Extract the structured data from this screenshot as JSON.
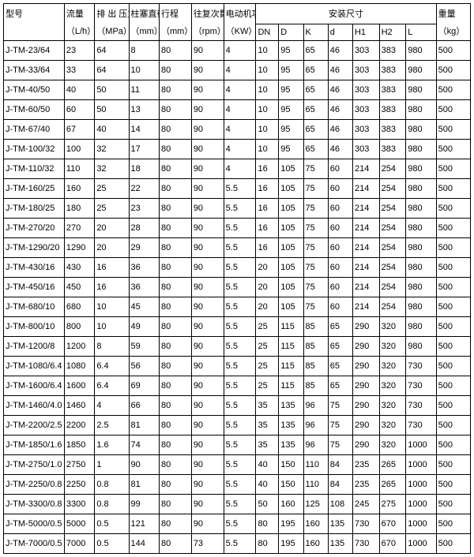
{
  "headers": {
    "model": "型号",
    "flow": {
      "label": "流量",
      "unit": "（L/h）"
    },
    "pressure": {
      "label": "排 出 压力",
      "unit": "（MPa）"
    },
    "plunger": {
      "label": "柱塞直径",
      "unit": "（mm）"
    },
    "stroke": {
      "label": "行程",
      "unit": "（mm）"
    },
    "recip": {
      "label": "往复次数",
      "unit": "（rpm）"
    },
    "motor": {
      "label": "电动机功率",
      "unit": "（KW）"
    },
    "install": "安装尺寸",
    "dims": {
      "DN": "DN",
      "D": "D",
      "K": "K",
      "d": "d",
      "H1": "H1",
      "H2": "H2",
      "L": "L"
    },
    "weight": {
      "label": "重量",
      "unit": "（kg）"
    }
  },
  "rows": [
    [
      "J-TM-23/64",
      "23",
      "64",
      "8",
      "80",
      "90",
      "4",
      "10",
      "95",
      "65",
      "46",
      "303",
      "383",
      "980",
      "500"
    ],
    [
      "J-TM-33/64",
      "33",
      "64",
      "10",
      "80",
      "90",
      "4",
      "10",
      "95",
      "65",
      "46",
      "303",
      "383",
      "980",
      "500"
    ],
    [
      "J-TM-40/50",
      "40",
      "50",
      "11",
      "80",
      "90",
      "4",
      "10",
      "95",
      "65",
      "46",
      "303",
      "383",
      "980",
      "500"
    ],
    [
      "J-TM-60/50",
      "60",
      "50",
      "13",
      "80",
      "90",
      "4",
      "10",
      "95",
      "65",
      "46",
      "303",
      "383",
      "980",
      "500"
    ],
    [
      "J-TM-67/40",
      "67",
      "40",
      "14",
      "80",
      "90",
      "4",
      "10",
      "95",
      "65",
      "46",
      "303",
      "383",
      "980",
      "500"
    ],
    [
      "J-TM-100/32",
      "100",
      "32",
      "17",
      "80",
      "90",
      "4",
      "10",
      "95",
      "65",
      "46",
      "303",
      "383",
      "980",
      "500"
    ],
    [
      "J-TM-110/32",
      "110",
      "32",
      "18",
      "80",
      "90",
      "4",
      "16",
      "105",
      "75",
      "60",
      "214",
      "254",
      "980",
      "500"
    ],
    [
      "J-TM-160/25",
      "160",
      "25",
      "22",
      "80",
      "90",
      "5.5",
      "16",
      "105",
      "75",
      "60",
      "214",
      "254",
      "980",
      "500"
    ],
    [
      "J-TM-180/25",
      "180",
      "25",
      "23",
      "80",
      "90",
      "5.5",
      "16",
      "105",
      "75",
      "60",
      "214",
      "254",
      "980",
      "500"
    ],
    [
      "J-TM-270/20",
      "270",
      "20",
      "28",
      "80",
      "90",
      "5.5",
      "16",
      "105",
      "75",
      "60",
      "214",
      "254",
      "980",
      "500"
    ],
    [
      "J-TM-1290/20",
      "1290",
      "20",
      "29",
      "80",
      "90",
      "5.5",
      "16",
      "105",
      "75",
      "60",
      "214",
      "254",
      "980",
      "500"
    ],
    [
      "J-TM-430/16",
      "430",
      "16",
      "36",
      "80",
      "90",
      "5.5",
      "20",
      "105",
      "75",
      "60",
      "214",
      "254",
      "980",
      "500"
    ],
    [
      "J-TM-450/16",
      "450",
      "16",
      "36",
      "80",
      "90",
      "5.5",
      "20",
      "105",
      "75",
      "60",
      "214",
      "254",
      "980",
      "500"
    ],
    [
      "J-TM-680/10",
      "680",
      "10",
      "45",
      "80",
      "90",
      "5.5",
      "20",
      "105",
      "75",
      "60",
      "214",
      "254",
      "980",
      "500"
    ],
    [
      "J-TM-800/10",
      "800",
      "10",
      "49",
      "80",
      "90",
      "5.5",
      "25",
      "115",
      "85",
      "65",
      "290",
      "320",
      "980",
      "500"
    ],
    [
      "J-TM-1200/8",
      "1200",
      "8",
      "59",
      "80",
      "90",
      "5.5",
      "25",
      "115",
      "85",
      "65",
      "290",
      "320",
      "980",
      "500"
    ],
    [
      "J-TM-1080/6.4",
      "1080",
      "6.4",
      "56",
      "80",
      "90",
      "5.5",
      "25",
      "115",
      "85",
      "65",
      "290",
      "320",
      "730",
      "500"
    ],
    [
      "J-TM-1600/6.4",
      "1600",
      "6.4",
      "69",
      "80",
      "90",
      "5.5",
      "25",
      "115",
      "85",
      "65",
      "290",
      "320",
      "730",
      "500"
    ],
    [
      "J-TM-1460/4.0",
      "1460",
      "4",
      "66",
      "80",
      "90",
      "5.5",
      "35",
      "135",
      "96",
      "75",
      "290",
      "320",
      "730",
      "500"
    ],
    [
      "J-TM-2200/2.5",
      "2200",
      "2.5",
      "81",
      "80",
      "90",
      "5.5",
      "35",
      "135",
      "96",
      "75",
      "290",
      "320",
      "730",
      "500"
    ],
    [
      "J-TM-1850/1.6",
      "1850",
      "1.6",
      "74",
      "80",
      "90",
      "5.5",
      "35",
      "135",
      "96",
      "75",
      "290",
      "320",
      "1000",
      "500"
    ],
    [
      "J-TM-2750/1.0",
      "2750",
      "1",
      "90",
      "80",
      "90",
      "5.5",
      "40",
      "150",
      "110",
      "84",
      "235",
      "265",
      "1000",
      "500"
    ],
    [
      "J-TM-2250/0.8",
      "2250",
      "0.8",
      "81",
      "80",
      "90",
      "5.5",
      "40",
      "150",
      "110",
      "84",
      "235",
      "265",
      "1000",
      "500"
    ],
    [
      "J-TM-3300/0.8",
      "3300",
      "0.8",
      "99",
      "80",
      "90",
      "5.5",
      "50",
      "160",
      "125",
      "108",
      "245",
      "275",
      "1000",
      "500"
    ],
    [
      "J-TM-5000/0.5",
      "5000",
      "0.5",
      "121",
      "80",
      "90",
      "5.5",
      "80",
      "195",
      "160",
      "135",
      "730",
      "670",
      "1000",
      "500"
    ],
    [
      "J-TM-7000/0.5",
      "7000",
      "0.5",
      "144",
      "80",
      "73",
      "5.5",
      "80",
      "195",
      "160",
      "135",
      "730",
      "670",
      "1000",
      "500"
    ]
  ]
}
